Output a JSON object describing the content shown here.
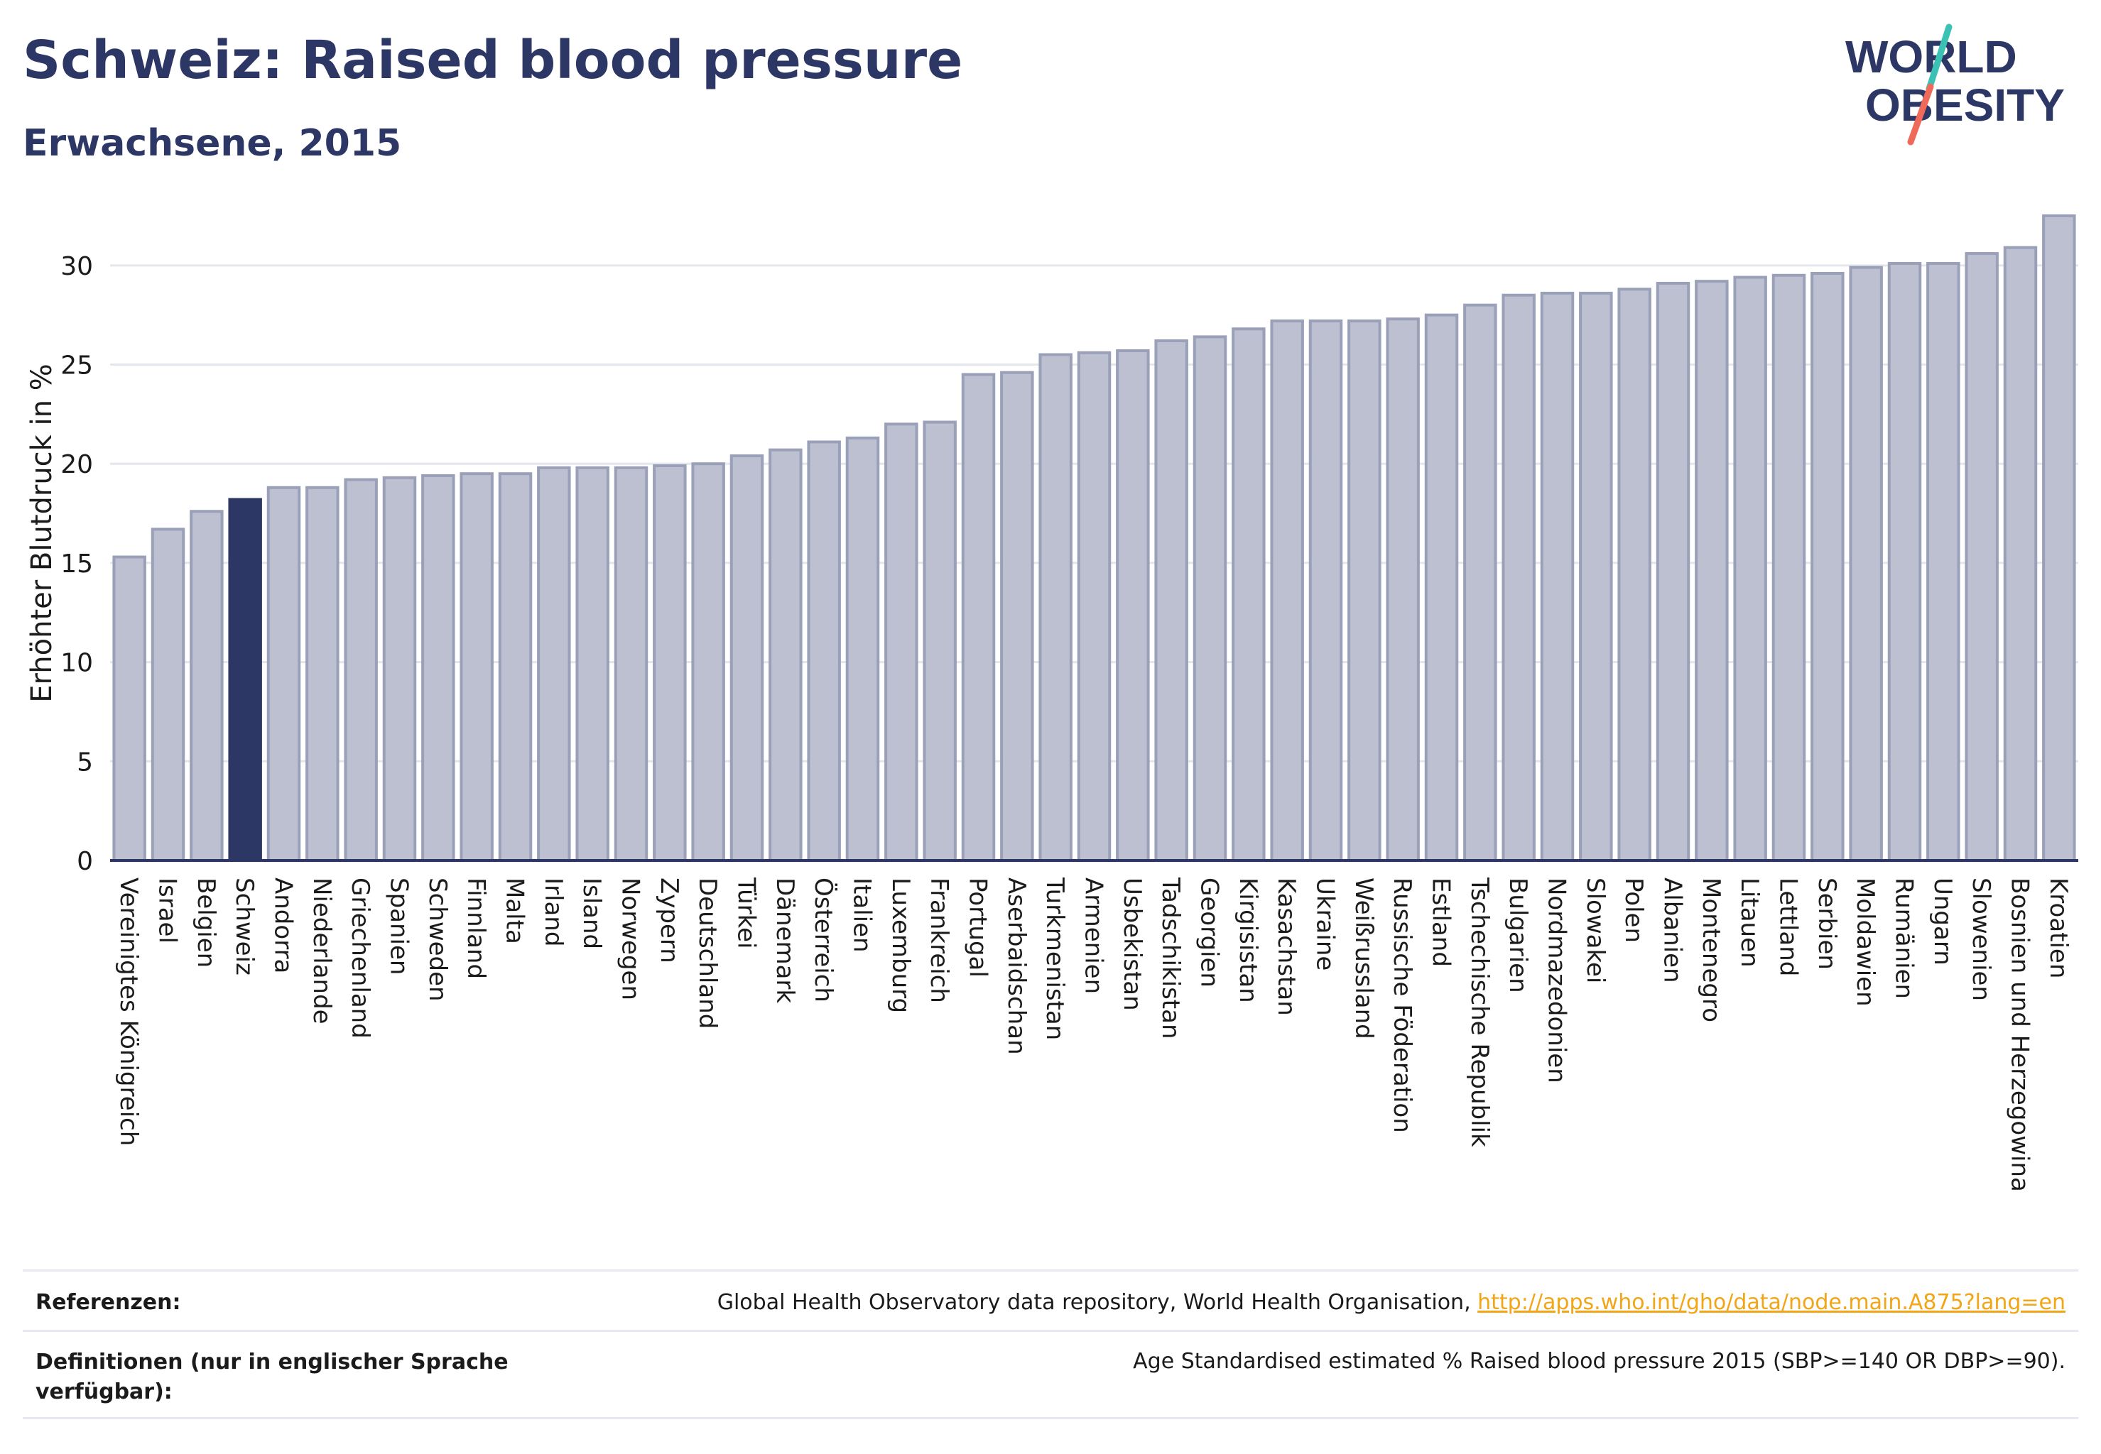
{
  "header": {
    "title": "Schweiz: Raised blood pressure",
    "subtitle": "Erwachsene, 2015"
  },
  "logo": {
    "line1": "WORLD",
    "line2": "OBESITY",
    "slash_colors": [
      "#3cc2b4",
      "#ef6a5a"
    ]
  },
  "colors": {
    "bar": "#bcc0d0",
    "bar_stroke": "#9aa0b8",
    "highlight": "#2d3765",
    "axis": "#2d3765",
    "grid": "#e4e6ee",
    "text": "#1b1b1b"
  },
  "chart_data": {
    "type": "bar",
    "ylabel": "Erhöhter Blutdruck in %",
    "ylim": [
      0,
      33
    ],
    "yticks": [
      0,
      5,
      10,
      15,
      20,
      25,
      30
    ],
    "grid": true,
    "highlight": "Schweiz",
    "categories": [
      "Vereinigtes Königreich",
      "Israel",
      "Belgien",
      "Schweiz",
      "Andorra",
      "Niederlande",
      "Griechenland",
      "Spanien",
      "Schweden",
      "Finnland",
      "Malta",
      "Irland",
      "Island",
      "Norwegen",
      "Zypern",
      "Deutschland",
      "Türkei",
      "Dänemark",
      "Österreich",
      "Italien",
      "Luxemburg",
      "Frankreich",
      "Portugal",
      "Aserbaidschan",
      "Turkmenistan",
      "Armenien",
      "Usbekistan",
      "Tadschikistan",
      "Georgien",
      "Kirgisistan",
      "Kasachstan",
      "Ukraine",
      "Weißrussland",
      "Russische Föderation",
      "Estland",
      "Tschechische Republik",
      "Bulgarien",
      "Nordmazedonien",
      "Slowakei",
      "Polen",
      "Albanien",
      "Montenegro",
      "Litauen",
      "Lettland",
      "Serbien",
      "Moldawien",
      "Rumänien",
      "Ungarn",
      "Slowenien",
      "Bosnien und Herzegowina",
      "Kroatien"
    ],
    "values": [
      15.3,
      16.7,
      17.6,
      18.2,
      18.8,
      18.8,
      19.2,
      19.3,
      19.4,
      19.5,
      19.5,
      19.8,
      19.8,
      19.8,
      19.9,
      20.0,
      20.4,
      20.7,
      21.1,
      21.3,
      22.0,
      22.1,
      24.5,
      24.6,
      25.5,
      25.6,
      25.7,
      26.2,
      26.4,
      26.8,
      27.2,
      27.2,
      27.2,
      27.3,
      27.5,
      28.0,
      28.5,
      28.6,
      28.6,
      28.8,
      29.1,
      29.2,
      29.4,
      29.5,
      29.6,
      29.9,
      30.1,
      30.1,
      30.6,
      30.9,
      32.5
    ]
  },
  "footer": {
    "references_label": "Referenzen:",
    "references_text": "Global Health Observatory data repository, World Health Organisation, ",
    "references_link": "http://apps.who.int/gho/data/node.main.A875?lang=en",
    "definitions_label": "Definitionen (nur in englischer Sprache verfügbar):",
    "definitions_text": "Age Standardised estimated % Raised blood pressure 2015 (SBP>=140 OR DBP>=90)."
  }
}
